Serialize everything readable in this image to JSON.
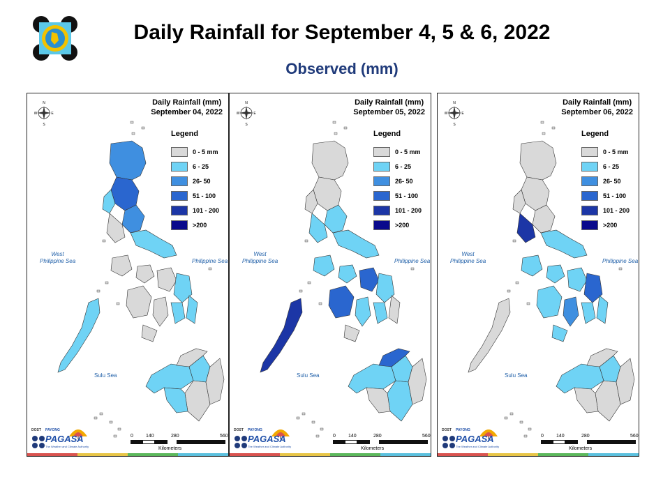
{
  "header": {
    "title": "Daily Rainfall for September 4, 5 & 6, 2022",
    "subtitle": "Observed (mm)"
  },
  "legend": {
    "title": "Legend",
    "classes": [
      {
        "label": "0 - 5 mm",
        "color": "#d9d9d9"
      },
      {
        "label": "6 - 25",
        "color": "#6fd3f5"
      },
      {
        "label": "26- 50",
        "color": "#3f8fe0"
      },
      {
        "label": "51 - 100",
        "color": "#2a66cf"
      },
      {
        "label": "101 - 200",
        "color": "#1c36a6"
      },
      {
        "label": ">200",
        "color": "#0a0a8c"
      }
    ]
  },
  "panels": [
    {
      "heading": "Daily Rainfall (mm)",
      "date": "September 04, 2022"
    },
    {
      "heading": "Daily Rainfall (mm)",
      "date": "September 05, 2022"
    },
    {
      "heading": "Daily Rainfall (mm)",
      "date": "September 06, 2022"
    }
  ],
  "seas": {
    "west_line1": "West",
    "west_line2": "Philippine Sea",
    "east": "Philippine Sea",
    "sulu": "Sulu Sea"
  },
  "compass": {
    "n": "N",
    "s": "S",
    "e": "E",
    "w": "W"
  },
  "scale": {
    "ticks": [
      "0",
      "140",
      "280",
      "560"
    ],
    "unit": "Kilometers"
  },
  "agency": {
    "dost": "DOST",
    "payong": "PAYONG",
    "name": "PAGASA",
    "tagline": "The Weather and Climate Authority"
  },
  "stripe_colors": [
    "#d9534f",
    "#e8c547",
    "#5cb85c",
    "#5bc0de"
  ]
}
